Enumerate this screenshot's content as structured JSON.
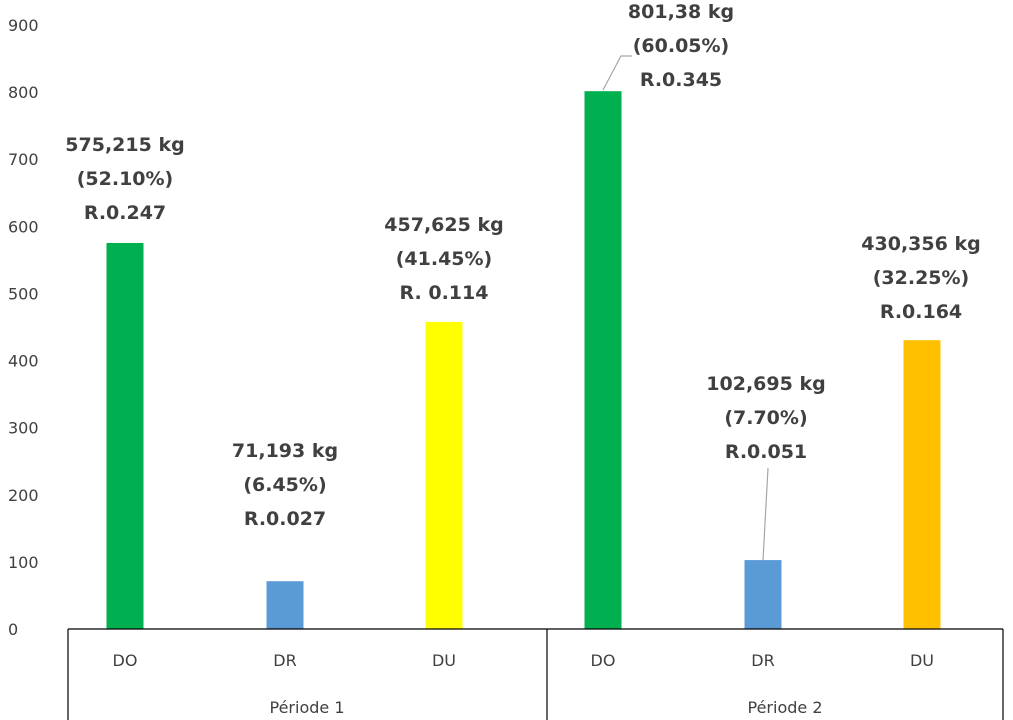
{
  "chart_data": {
    "type": "bar",
    "title": "",
    "xlabel": "",
    "ylabel": "",
    "ylim": [
      0,
      900
    ],
    "yticks": [
      "0",
      "100",
      "200",
      "300",
      "400",
      "500",
      "600",
      "700",
      "800",
      "900"
    ],
    "grid": false,
    "legend": "none",
    "groups": [
      {
        "label": "Période 1",
        "bars": [
          {
            "category": "DO",
            "value": 575.215,
            "color": "#00B050",
            "label_lines": [
              "575,215 kg",
              "(52.10%)",
              "R.0.247"
            ]
          },
          {
            "category": "DR",
            "value": 71.193,
            "color": "#5B9BD5",
            "label_lines": [
              "71,193 kg",
              "(6.45%)",
              "R.0.027"
            ]
          },
          {
            "category": "DU",
            "value": 457.625,
            "color": "#FFFF00",
            "label_lines": [
              "457,625 kg",
              "(41.45%)",
              "R. 0.114"
            ]
          }
        ]
      },
      {
        "label": "Période 2",
        "bars": [
          {
            "category": "DO",
            "value": 801.38,
            "color": "#00B050",
            "label_lines": [
              "801,38 kg",
              "(60.05%)",
              "R.0.345"
            ]
          },
          {
            "category": "DR",
            "value": 102.695,
            "color": "#5B9BD5",
            "label_lines": [
              "102,695 kg",
              "(7.70%)",
              "R.0.051"
            ]
          },
          {
            "category": "DU",
            "value": 430.356,
            "color": "#FFC000",
            "label_lines": [
              "430,356 kg",
              "(32.25%)",
              "R.0.164"
            ]
          }
        ]
      }
    ]
  }
}
